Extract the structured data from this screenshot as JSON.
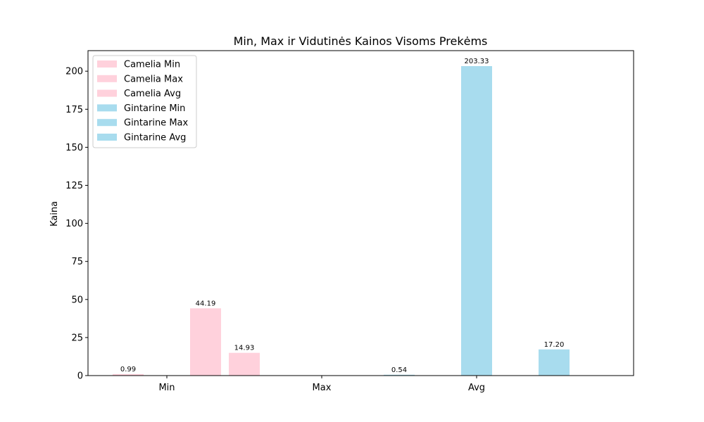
{
  "chart_data": {
    "type": "bar",
    "title": "Min, Max ir Vidutinės Kainos Visoms Prekėms",
    "xlabel": "",
    "ylabel": "Kaina",
    "categories": [
      "Min",
      "Max",
      "Avg"
    ],
    "y_ticks": [
      "0",
      "25",
      "50",
      "75",
      "100",
      "125",
      "150",
      "175",
      "200"
    ],
    "ylim": [
      0,
      213.5
    ],
    "legend_placement": "upper-left",
    "grid": false,
    "colors": {
      "camelia": "#ffd1dc",
      "gintarine": "#a8dcee"
    },
    "legend": [
      {
        "label": "Camelia Min",
        "color": "#ffd1dc"
      },
      {
        "label": "Camelia Max",
        "color": "#ffd1dc"
      },
      {
        "label": "Camelia Avg",
        "color": "#ffd1dc"
      },
      {
        "label": "Gintarine Min",
        "color": "#a8dcee"
      },
      {
        "label": "Gintarine Max",
        "color": "#a8dcee"
      },
      {
        "label": "Gintarine Avg",
        "color": "#a8dcee"
      }
    ],
    "bars": [
      {
        "value": 0.99,
        "label": "0.99",
        "color": "#ffd1dc"
      },
      {
        "value": 0,
        "label": "",
        "color": "#ffd1dc"
      },
      {
        "value": 44.19,
        "label": "44.19",
        "color": "#ffd1dc"
      },
      {
        "value": 14.93,
        "label": "14.93",
        "color": "#ffd1dc"
      },
      {
        "value": 0,
        "label": "",
        "color": "#ffd1dc"
      },
      {
        "value": 0,
        "label": "",
        "color": "#ffd1dc"
      },
      {
        "value": 0,
        "label": "",
        "color": "#a8dcee"
      },
      {
        "value": 0.54,
        "label": "0.54",
        "color": "#a8dcee"
      },
      {
        "value": 0,
        "label": "",
        "color": "#a8dcee"
      },
      {
        "value": 203.33,
        "label": "203.33",
        "color": "#a8dcee"
      },
      {
        "value": 0,
        "label": "",
        "color": "#a8dcee"
      },
      {
        "value": 17.2,
        "label": "17.20",
        "color": "#a8dcee"
      }
    ]
  }
}
